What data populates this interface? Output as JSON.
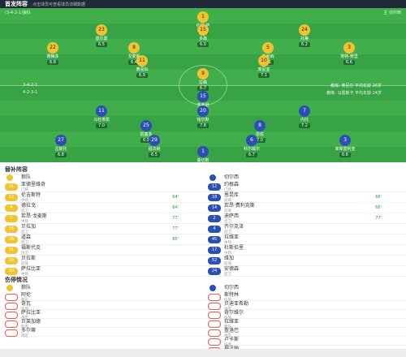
{
  "header": {
    "title": "首发阵容",
    "subtitle": "点击球员可查看球员详细数据"
  },
  "home": {
    "name": "狼队",
    "label": "(3-4-2-1)狼队",
    "formation": "3-4-2-1",
    "coach": "教练: 奥尼尔 平均年龄 26岁",
    "players": [
      {
        "name": "约瑟·萨",
        "num": "1",
        "rating": "6.3"
      },
      {
        "name": "基尔曼",
        "num": "23",
        "rating": "6.5"
      },
      {
        "name": "多森",
        "num": "15",
        "rating": "6.0"
      },
      {
        "name": "托蒂",
        "num": "24",
        "rating": "6.2"
      },
      {
        "name": "赛梅多",
        "num": "22",
        "rating": "6.8"
      },
      {
        "name": "戈麦斯",
        "num": "8",
        "rating": "6.4"
      },
      {
        "name": "莱米纳",
        "num": "5",
        "rating": "6.1"
      },
      {
        "name": "埃特-努里",
        "num": "3",
        "rating": "6.6"
      },
      {
        "name": "黄喜灿",
        "num": "11",
        "rating": "6.9"
      },
      {
        "name": "库尼亚",
        "num": "10",
        "rating": "7.1"
      },
      {
        "name": "拉森",
        "num": "9",
        "rating": "6.7"
      }
    ]
  },
  "away": {
    "name": "切尔西",
    "label": "主 切尔西",
    "formation": "4-2-3-1",
    "coach": "教练: 马雷斯卡 平均年龄 24岁",
    "players": [
      {
        "name": "杰克逊",
        "num": "15",
        "rating": "7.4"
      },
      {
        "name": "马杜埃凯",
        "num": "11",
        "rating": "7.0"
      },
      {
        "name": "帕尔默",
        "num": "20",
        "rating": "7.8"
      },
      {
        "name": "内托",
        "num": "7",
        "rating": "7.2"
      },
      {
        "name": "凯塞多",
        "num": "25",
        "rating": "6.9"
      },
      {
        "name": "恩佐",
        "num": "8",
        "rating": "7.0"
      },
      {
        "name": "古斯托",
        "num": "27",
        "rating": "6.8"
      },
      {
        "name": "福法纳",
        "num": "29",
        "rating": "6.5"
      },
      {
        "name": "科尔威尔",
        "num": "6",
        "rating": "6.7"
      },
      {
        "name": "库库雷利亚",
        "num": "3",
        "rating": "6.6"
      },
      {
        "name": "桑切斯",
        "num": "1",
        "rating": "6.4"
      }
    ]
  },
  "subs_title": "替补阵容",
  "home_subs": [
    {
      "name": "亚德里维奇",
      "num": "21",
      "pos": "门将"
    },
    {
      "name": "伦吉斯特",
      "num": "12",
      "pos": "中场",
      "time": "64'"
    },
    {
      "name": "德拉戈",
      "num": "4",
      "pos": "后卫",
      "time": "64'"
    },
    {
      "name": "若昂·戈麦斯",
      "num": "7",
      "pos": "中场",
      "time": "77'"
    },
    {
      "name": "贝拉加",
      "num": "16",
      "pos": "后卫",
      "time": "77'"
    },
    {
      "name": "道森",
      "num": "26",
      "pos": "后卫",
      "time": "85'"
    },
    {
      "name": "福斯代克",
      "num": "31",
      "pos": "后卫"
    },
    {
      "name": "贝拉斯",
      "num": "19",
      "pos": "前锋"
    },
    {
      "name": "萨拉比亚",
      "num": "30",
      "pos": "中场"
    }
  ],
  "away_subs": [
    {
      "name": "约根森",
      "num": "12",
      "pos": "门将"
    },
    {
      "name": "恩昆库",
      "num": "18",
      "pos": "前锋",
      "time": "66'"
    },
    {
      "name": "若昂·费利克斯",
      "num": "14",
      "pos": "前锋",
      "time": "66'"
    },
    {
      "name": "迪萨西",
      "num": "2",
      "pos": "后卫",
      "time": "77'"
    },
    {
      "name": "齐尔克泽",
      "num": "4",
      "pos": "后卫"
    },
    {
      "name": "拉维亚",
      "num": "45",
      "pos": "中场"
    },
    {
      "name": "杜斯伯里",
      "num": "17",
      "pos": "中场"
    },
    {
      "name": "维加",
      "num": "52",
      "pos": "前锋"
    },
    {
      "name": "安德森",
      "num": "24",
      "pos": "后卫"
    }
  ],
  "injuries_title": "伤停情况",
  "home_injuries": [
    {
      "name": "阿伦",
      "status": "腿伤"
    },
    {
      "name": "奇瓦",
      "status": "伤停"
    },
    {
      "name": "萨拉比亚",
      "status": "待定"
    },
    {
      "name": "贝莱加德",
      "status": "肌肉"
    },
    {
      "name": "多尔蒂",
      "status": "待定"
    }
  ],
  "away_injuries": [
    {
      "name": "斯特林",
      "status": "伤停"
    },
    {
      "name": "贝迪亚希勒",
      "status": "待定"
    },
    {
      "name": "奇尔维尔",
      "status": "伤停"
    },
    {
      "name": "拉维亚",
      "status": "腿伤"
    },
    {
      "name": "查洛巴",
      "status": "待定"
    },
    {
      "name": "卢卡斯",
      "status": "伤停"
    },
    {
      "name": "福法纳",
      "status": "待定"
    }
  ]
}
